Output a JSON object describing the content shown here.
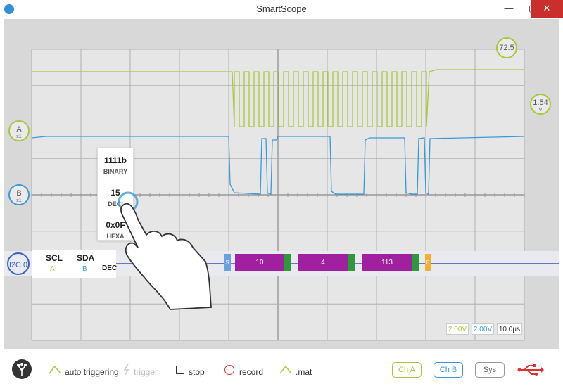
{
  "window": {
    "title": "SmartScope"
  },
  "channels": {
    "a": {
      "label": "A",
      "sub": "x1",
      "color": "#a8c83c"
    },
    "b": {
      "label": "B",
      "sub": "x1",
      "color": "#3a9ad9"
    }
  },
  "markers": {
    "trigger_level": "72.5",
    "voltage": "1.54",
    "voltage_unit": "V"
  },
  "decoder": {
    "name": "I2C 0",
    "scl_label": "SCL",
    "scl_channel": "A",
    "sda_label": "SDA",
    "sda_channel": "B",
    "format_label": "DEC",
    "segments": {
      "start": "S",
      "byte1": "10",
      "byte2": "4",
      "byte3": "113",
      "stop": "P"
    }
  },
  "popup": {
    "binary_value": "1111b",
    "binary_label": "BINARY",
    "decimal_value": "15",
    "decimal_label": "DECI",
    "hex_value": "0x0F",
    "hex_label": "HEXA"
  },
  "scale": {
    "ch_a": "2.00V",
    "ch_b": "2.00V",
    "time": "10.0µs"
  },
  "toolbar": {
    "auto_triggering": "auto triggering",
    "trigger": "trigger",
    "stop": "stop",
    "record": "record",
    "mat": ".mat",
    "ch_a": "Ch A",
    "ch_b": "Ch B",
    "sys": "Sys"
  },
  "colors": {
    "accent": "#3a9ad9",
    "decode_purple": "#a020a0",
    "ack_green": "#2a9a3a",
    "stop_orange": "#f0b030",
    "record_red": "#e03030"
  }
}
